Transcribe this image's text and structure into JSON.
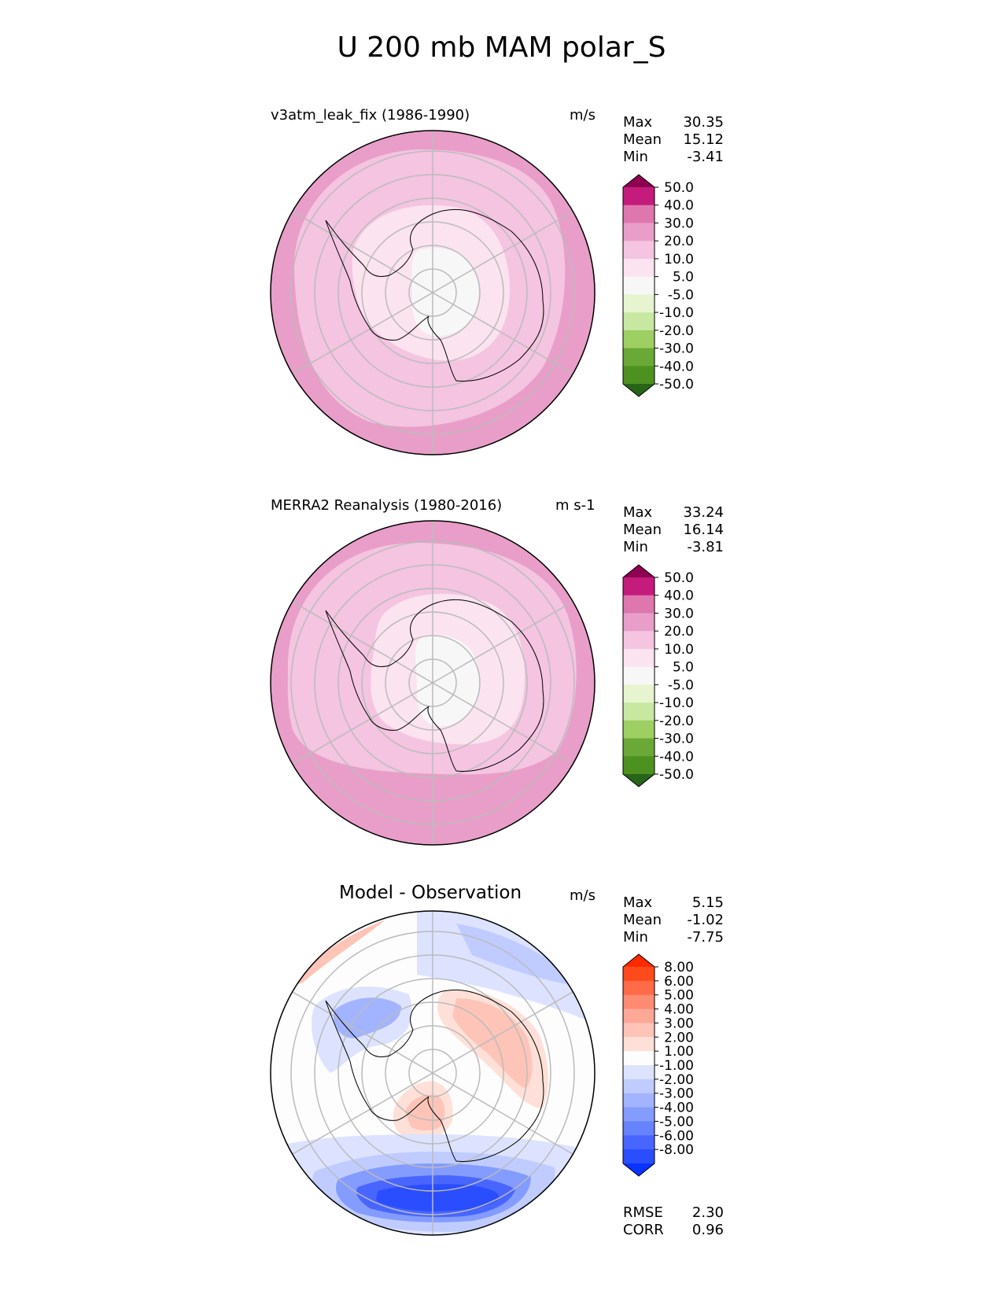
{
  "title": "U 200 mb MAM polar_S",
  "panels": [
    {
      "title": "v3atm_leak_fix (1986-1990)",
      "units": "m/s",
      "stats": {
        "max_label": "Max",
        "max": "30.35",
        "mean_label": "Mean",
        "mean": "15.12",
        "min_label": "Min",
        "min": "-3.41"
      }
    },
    {
      "title": "MERRA2 Reanalysis (1980-2016)",
      "units": "m s-1",
      "stats": {
        "max_label": "Max",
        "max": "33.24",
        "mean_label": "Mean",
        "mean": "16.14",
        "min_label": "Min",
        "min": "-3.81"
      }
    },
    {
      "title": "Model - Observation",
      "units": "m/s",
      "stats": {
        "max_label": "Max",
        "max": "5.15",
        "mean_label": "Mean",
        "mean": "-1.02",
        "min_label": "Min",
        "min": "-7.75"
      },
      "metrics": {
        "rmse_label": "RMSE",
        "rmse": "2.30",
        "corr_label": "CORR",
        "corr": "0.96"
      }
    }
  ],
  "chart_data": [
    {
      "type": "heatmap",
      "projection": "south-polar-stereographic",
      "title": "v3atm_leak_fix (1986-1990)",
      "units": "m/s",
      "levels": [
        -50,
        -40,
        -30,
        -20,
        -10,
        -5,
        5,
        10,
        20,
        30,
        40,
        50
      ],
      "tick_labels": [
        "50.0",
        "40.0",
        "30.0",
        "20.0",
        "10.0",
        "5.0",
        "-5.0",
        "-10.0",
        "-20.0",
        "-30.0",
        "-40.0",
        "-50.0"
      ],
      "colors": [
        "#8e0152",
        "#c51b7d",
        "#de77ae",
        "#e89ec8",
        "#f4c4e1",
        "#fbe3ef",
        "#f7f7f7",
        "#e6f5d0",
        "#c8e8a2",
        "#9dcf62",
        "#6aa838",
        "#4d9221",
        "#276419"
      ],
      "max": 30.35,
      "mean": 15.12,
      "min": -3.41
    },
    {
      "type": "heatmap",
      "projection": "south-polar-stereographic",
      "title": "MERRA2 Reanalysis (1980-2016)",
      "units": "m s-1",
      "levels": [
        -50,
        -40,
        -30,
        -20,
        -10,
        -5,
        5,
        10,
        20,
        30,
        40,
        50
      ],
      "tick_labels": [
        "50.0",
        "40.0",
        "30.0",
        "20.0",
        "10.0",
        "5.0",
        "-5.0",
        "-10.0",
        "-20.0",
        "-30.0",
        "-40.0",
        "-50.0"
      ],
      "colors": [
        "#8e0152",
        "#c51b7d",
        "#de77ae",
        "#e89ec8",
        "#f4c4e1",
        "#fbe3ef",
        "#f7f7f7",
        "#e6f5d0",
        "#c8e8a2",
        "#9dcf62",
        "#6aa838",
        "#4d9221",
        "#276419"
      ],
      "max": 33.24,
      "mean": 16.14,
      "min": -3.81
    },
    {
      "type": "heatmap",
      "projection": "south-polar-stereographic",
      "title": "Model - Observation",
      "units": "m/s",
      "levels": [
        -8,
        -6,
        -5,
        -4,
        -3,
        -2,
        -1,
        1,
        2,
        3,
        4,
        5,
        6,
        8
      ],
      "tick_labels": [
        "8.00",
        "6.00",
        "5.00",
        "4.00",
        "3.00",
        "2.00",
        "1.00",
        "-1.00",
        "-2.00",
        "-3.00",
        "-4.00",
        "-5.00",
        "-6.00",
        "-8.00"
      ],
      "colors": [
        "#ff2a00",
        "#ff4a1c",
        "#ff6a48",
        "#ff8c72",
        "#ffa898",
        "#ffc4b8",
        "#ffe0d8",
        "#fdfdfd",
        "#dde3ff",
        "#c0ccff",
        "#a2b4ff",
        "#849bff",
        "#6682ff",
        "#4866ff",
        "#2a4dff",
        "#0a33ff"
      ],
      "max": 5.15,
      "mean": -1.02,
      "min": -7.75,
      "rmse": 2.3,
      "corr": 0.96
    }
  ]
}
